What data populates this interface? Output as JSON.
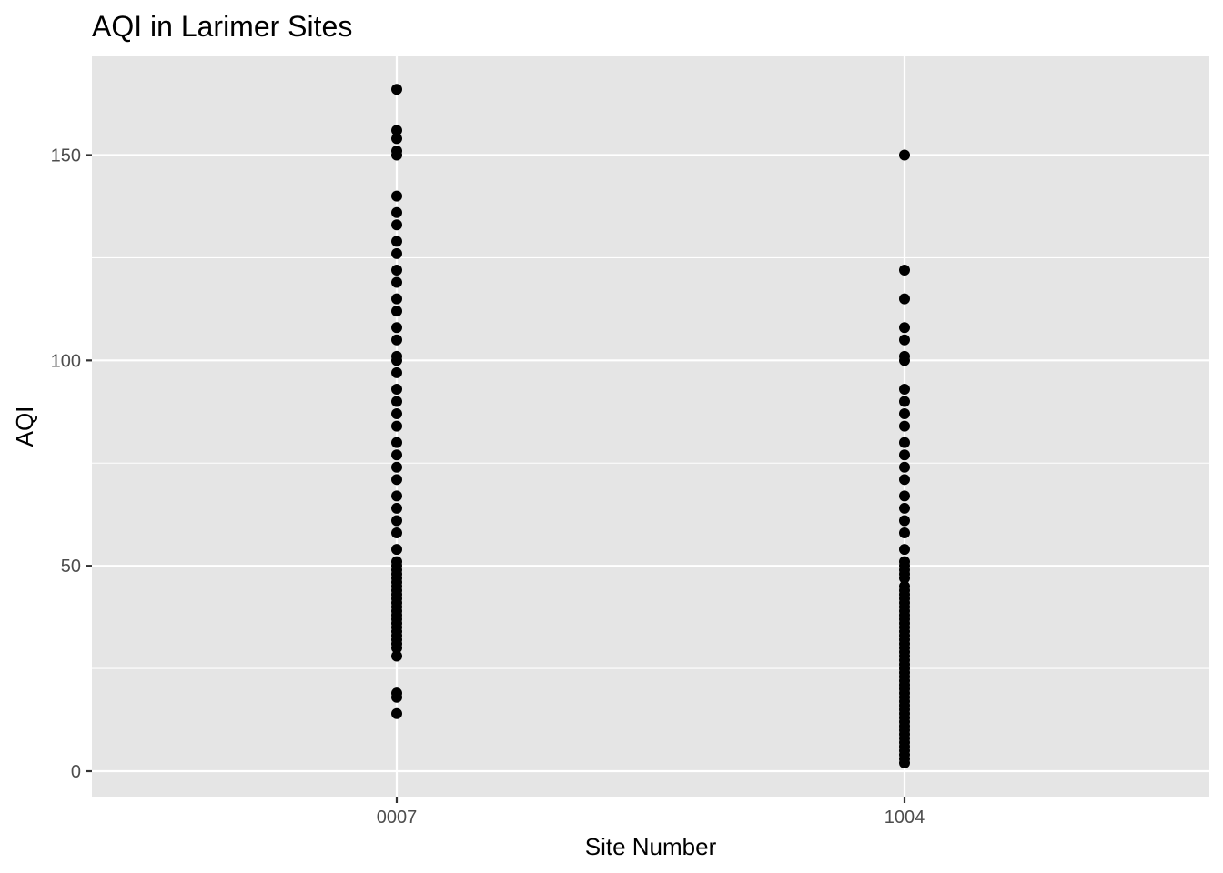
{
  "chart_data": {
    "type": "scatter",
    "title": "AQI in Larimer Sites",
    "xlabel": "Site Number",
    "ylabel": "AQI",
    "categories": [
      "0007",
      "1004"
    ],
    "ylim": [
      -5,
      170
    ],
    "y_ticks": [
      0,
      50,
      100,
      150
    ],
    "y_tick_labels": [
      "0",
      "50",
      "100",
      "150"
    ],
    "y_minor_ticks": [
      25,
      75,
      125
    ],
    "grid": true,
    "legend": "none",
    "series": [
      {
        "category": "0007",
        "values": [
          166,
          156,
          154,
          151,
          150,
          140,
          136,
          133,
          129,
          126,
          122,
          119,
          115,
          112,
          108,
          105,
          101,
          100,
          97,
          93,
          90,
          87,
          84,
          80,
          77,
          74,
          71,
          67,
          64,
          61,
          58,
          54,
          51,
          50,
          49,
          48,
          47,
          46,
          45,
          44,
          43,
          42,
          41,
          40,
          39,
          38,
          37,
          36,
          35,
          34,
          33,
          32,
          31,
          30,
          28,
          19,
          18,
          14
        ]
      },
      {
        "category": "1004",
        "values": [
          150,
          122,
          115,
          108,
          105,
          101,
          100,
          93,
          90,
          87,
          84,
          80,
          77,
          74,
          71,
          67,
          64,
          61,
          58,
          54,
          51,
          50,
          49,
          48,
          47,
          45,
          44,
          43,
          42,
          41,
          40,
          39,
          38,
          37,
          36,
          35,
          34,
          33,
          32,
          31,
          30,
          29,
          28,
          27,
          26,
          25,
          24,
          23,
          22,
          21,
          20,
          19,
          18,
          17,
          16,
          15,
          14,
          13,
          12,
          11,
          10,
          9,
          8,
          7,
          6,
          5,
          4,
          3,
          2
        ]
      }
    ]
  },
  "colors": {
    "panel_background": "#E5E5E5",
    "grid": "#FFFFFF",
    "point": "#000000",
    "tick_text": "#4D4D4D",
    "text": "#000000"
  }
}
